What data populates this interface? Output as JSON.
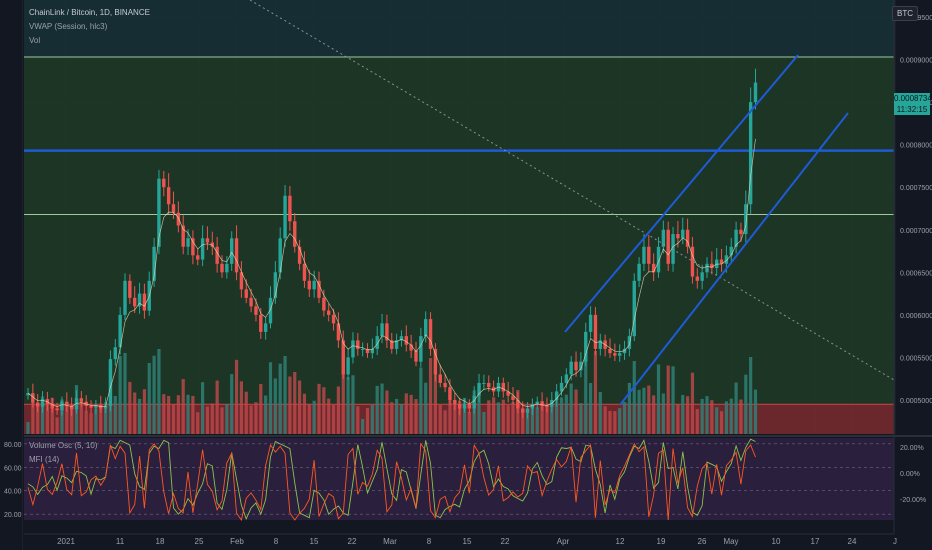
{
  "header": {
    "symbol_line": "ChainLink / Bitcoin, 1D, BINANCE",
    "vwap_label": "VWAP (Session, hlc3)",
    "vol_label": "Vol",
    "currency_button": "BTC"
  },
  "price_tag": {
    "price": "0.00087345",
    "countdown": "11:32:15",
    "color": "#26a69a"
  },
  "oscillator": {
    "vo_label": "Volume Osc (5, 10)",
    "mfi_label": "MFI (14)",
    "left_ticks": [
      "80.00",
      "60.00",
      "40.00",
      "20.00"
    ],
    "right_ticks": [
      "20.00%",
      "0.00%",
      "-20.00%"
    ]
  },
  "colors": {
    "up": "#26a69a",
    "down": "#ef5350",
    "trend_line": "#1e5bd6",
    "horizontal_zone": "#80c080",
    "mfi": "#8bc34a",
    "vo": "#ff5722"
  },
  "chart_data": {
    "type": "candlestick",
    "price_axis_ticks": [
      "0.00095000",
      "0.00090000",
      "0.00085000",
      "0.00080000",
      "0.00075000",
      "0.00070000",
      "0.00065000",
      "0.00060000",
      "0.00055000",
      "0.00050000"
    ],
    "time_axis_ticks": [
      "2021",
      "11",
      "18",
      "25",
      "Feb",
      "8",
      "15",
      "22",
      "Mar",
      "8",
      "15",
      "22",
      "Apr",
      "12",
      "19",
      "26",
      "May",
      "10",
      "17",
      "24",
      "J"
    ],
    "ylim": [
      0.00046,
      0.00097
    ],
    "horizontal_levels": [
      0.000903,
      0.000793,
      0.000718,
      0.000495
    ],
    "closes": [
      0.000508,
      0.000497,
      0.000492,
      0.000501,
      0.000495,
      0.00049,
      0.000488,
      0.000498,
      0.000493,
      0.000489,
      0.000502,
      0.000498,
      0.000493,
      0.000491,
      0.000494,
      0.00049,
      0.000493,
      0.000548,
      0.000562,
      0.0006,
      0.00064,
      0.00062,
      0.00061,
      0.000625,
      0.000605,
      0.00064,
      0.00068,
      0.00076,
      0.00075,
      0.00073,
      0.00072,
      0.000705,
      0.00068,
      0.00069,
      0.00067,
      0.000665,
      0.00069,
      0.000685,
      0.00068,
      0.00066,
      0.00065,
      0.00066,
      0.00069,
      0.00065,
      0.00063,
      0.00062,
      0.00061,
      0.0006,
      0.00058,
      0.00059,
      0.00062,
      0.00065,
      0.00069,
      0.00074,
      0.00071,
      0.00068,
      0.00066,
      0.00064,
      0.00063,
      0.00064,
      0.00062,
      0.000605,
      0.0006,
      0.00059,
      0.00057,
      0.00053,
      0.00055,
      0.00057,
      0.00056,
      0.00056,
      0.000555,
      0.00056,
      0.000575,
      0.00059,
      0.00057,
      0.00056,
      0.00057,
      0.000575,
      0.000565,
      0.000558,
      0.000545,
      0.000575,
      0.000595,
      0.00056,
      0.00053,
      0.00052,
      0.000515,
      0.0005,
      0.000495,
      0.00049,
      0.000495,
      0.00049,
      0.000505,
      0.00052,
      0.00052,
      0.000515,
      0.00051,
      0.00052,
      0.00051,
      0.000505,
      0.0005,
      0.00049,
      0.000485,
      0.00049,
      0.000495,
      0.000498,
      0.000493,
      0.000492,
      0.0005,
      0.00051,
      0.00052,
      0.00053,
      0.000545,
      0.000535,
      0.000545,
      0.00058,
      0.0006,
      0.00056,
      0.00057,
      0.00056,
      0.000555,
      0.000552,
      0.000555,
      0.00056,
      0.000575,
      0.00064,
      0.00066,
      0.00068,
      0.00066,
      0.00065,
      0.00068,
      0.0007,
      0.00066,
      0.000695,
      0.00069,
      0.0007,
      0.00068,
      0.000645,
      0.00064,
      0.00065,
      0.00066,
      0.000655,
      0.000665,
      0.00066,
      0.00067,
      0.00068,
      0.0007,
      0.000695,
      0.00073,
      0.00085,
      0.000873
    ]
  }
}
